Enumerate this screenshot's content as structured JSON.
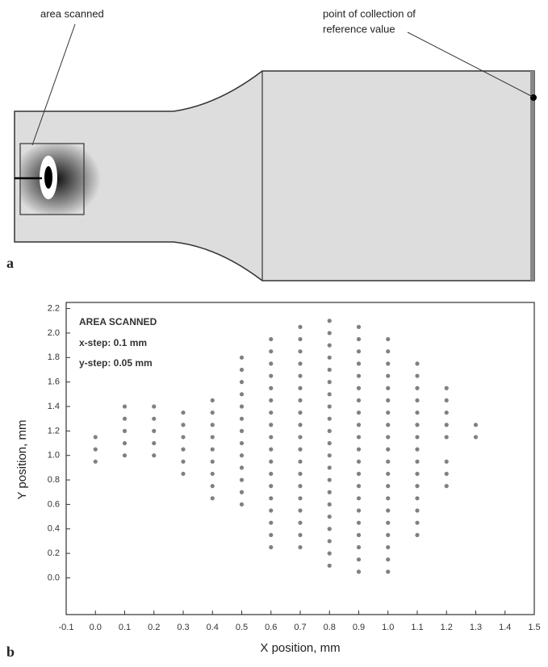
{
  "diagram": {
    "panel_label": "a",
    "labels": [
      [
        "area scanned"
      ],
      [
        "point of collection of",
        "reference value"
      ]
    ]
  },
  "chart_data": {
    "type": "scatter",
    "panel_label": "b",
    "x_label": "X position, mm",
    "y_label": "Y position, mm",
    "annotations": [
      "AREA SCANNED",
      "x-step: 0.1 mm",
      "y-step: 0.05 mm"
    ],
    "color": "#808080",
    "xlim": [
      -0.1,
      1.5
    ],
    "ylim": [
      -0.3,
      2.25
    ],
    "xticks": [
      -0.1,
      {
        "value": 0,
        "label": "0.0"
      },
      0.1,
      0.2,
      0.3,
      0.4,
      0.5,
      0.6,
      0.7,
      0.8,
      0.9,
      {
        "value": 1,
        "label": "1.0"
      },
      1.1,
      1.2,
      1.3,
      1.4,
      1.5
    ],
    "yticks": [
      {
        "value": 0,
        "label": "0.0"
      },
      0.2,
      0.4,
      0.6,
      0.8,
      {
        "value": 1,
        "label": "1.0"
      },
      1.2,
      1.4,
      1.6,
      1.8,
      {
        "value": 2,
        "label": "2.0"
      },
      2.2
    ],
    "x": [
      0,
      0,
      0,
      0.1,
      0.1,
      0.1,
      0.1,
      0.1,
      0.2,
      0.2,
      0.2,
      0.2,
      0.2,
      0.3,
      0.3,
      0.3,
      0.3,
      0.3,
      0.3,
      0.4,
      0.4,
      0.4,
      0.4,
      0.4,
      0.4,
      0.4,
      0.4,
      0.4,
      0.5,
      0.5,
      0.5,
      0.5,
      0.5,
      0.5,
      0.5,
      0.5,
      0.5,
      0.5,
      0.5,
      0.5,
      0.5,
      0.6,
      0.6,
      0.6,
      0.6,
      0.6,
      0.6,
      0.6,
      0.6,
      0.6,
      0.6,
      0.6,
      0.6,
      0.6,
      0.6,
      0.6,
      0.6,
      0.6,
      0.6,
      0.7,
      0.7,
      0.7,
      0.7,
      0.7,
      0.7,
      0.7,
      0.7,
      0.7,
      0.7,
      0.7,
      0.7,
      0.7,
      0.7,
      0.7,
      0.7,
      0.7,
      0.7,
      0.7,
      0.8,
      0.8,
      0.8,
      0.8,
      0.8,
      0.8,
      0.8,
      0.8,
      0.8,
      0.8,
      0.8,
      0.8,
      0.8,
      0.8,
      0.8,
      0.8,
      0.8,
      0.8,
      0.8,
      0.8,
      0.8,
      0.9,
      0.9,
      0.9,
      0.9,
      0.9,
      0.9,
      0.9,
      0.9,
      0.9,
      0.9,
      0.9,
      0.9,
      0.9,
      0.9,
      0.9,
      0.9,
      0.9,
      0.9,
      0.9,
      0.9,
      0.9,
      1,
      1,
      1,
      1,
      1,
      1,
      1,
      1,
      1,
      1,
      1,
      1,
      1,
      1,
      1,
      1,
      1,
      1,
      1,
      1,
      1.1,
      1.1,
      1.1,
      1.1,
      1.1,
      1.1,
      1.1,
      1.1,
      1.1,
      1.1,
      1.1,
      1.1,
      1.1,
      1.1,
      1.1,
      1.2,
      1.2,
      1.2,
      1.2,
      1.2,
      1.2,
      1.2,
      1.2,
      1.3,
      1.3
    ],
    "values": [
      0.95,
      1.05,
      1.15,
      1.0,
      1.1,
      1.2,
      1.3,
      1.4,
      1.0,
      1.1,
      1.2,
      1.3,
      1.4,
      0.85,
      0.95,
      1.05,
      1.15,
      1.25,
      1.35,
      0.65,
      0.75,
      0.85,
      0.95,
      1.05,
      1.15,
      1.25,
      1.35,
      1.45,
      0.6,
      0.7,
      0.8,
      0.9,
      1.0,
      1.1,
      1.2,
      1.3,
      1.4,
      1.5,
      1.6,
      1.7,
      1.8,
      0.25,
      0.35,
      0.45,
      0.55,
      0.65,
      0.75,
      0.85,
      0.95,
      1.05,
      1.15,
      1.25,
      1.35,
      1.45,
      1.55,
      1.65,
      1.75,
      1.85,
      1.95,
      0.25,
      0.35,
      0.45,
      0.55,
      0.65,
      0.75,
      0.85,
      0.95,
      1.05,
      1.15,
      1.25,
      1.35,
      1.45,
      1.55,
      1.65,
      1.75,
      1.85,
      1.95,
      2.05,
      0.1,
      0.2,
      0.3,
      0.4,
      0.5,
      0.6,
      0.7,
      0.8,
      0.9,
      1.0,
      1.1,
      1.2,
      1.3,
      1.4,
      1.5,
      1.6,
      1.7,
      1.8,
      1.9,
      2.0,
      2.1,
      0.05,
      0.15,
      0.25,
      0.35,
      0.45,
      0.55,
      0.65,
      0.75,
      0.85,
      0.95,
      1.05,
      1.15,
      1.25,
      1.35,
      1.45,
      1.55,
      1.65,
      1.75,
      1.85,
      1.95,
      2.05,
      0.05,
      0.15,
      0.25,
      0.35,
      0.45,
      0.55,
      0.65,
      0.75,
      0.85,
      0.95,
      1.05,
      1.15,
      1.25,
      1.35,
      1.45,
      1.55,
      1.65,
      1.75,
      1.85,
      1.95,
      0.35,
      0.45,
      0.55,
      0.65,
      0.75,
      0.85,
      0.95,
      1.05,
      1.15,
      1.25,
      1.35,
      1.45,
      1.55,
      1.65,
      1.75,
      0.75,
      0.85,
      0.95,
      1.15,
      1.25,
      1.35,
      1.45,
      1.55,
      1.15,
      1.25
    ]
  }
}
